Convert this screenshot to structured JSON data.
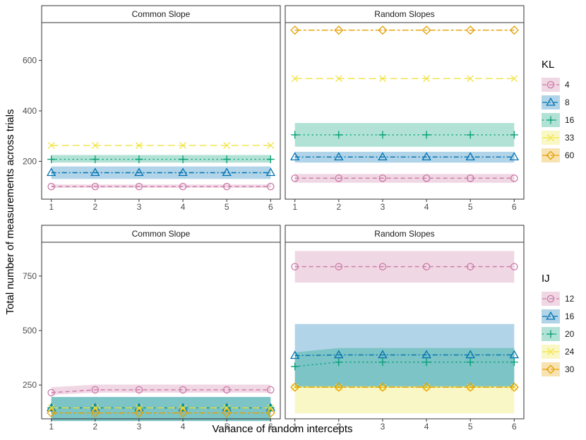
{
  "chart_data": {
    "type": "line",
    "xlabel": "Variance of random intercepts",
    "ylabel": "Total number of measurements across trials",
    "x": [
      1,
      2,
      3,
      4,
      5,
      6
    ],
    "rows": [
      {
        "legend_title": "KL",
        "ylim": [
          50,
          750
        ],
        "yticks": [
          200,
          400,
          600
        ],
        "panels": [
          {
            "title": "Common Slope",
            "series": [
              {
                "name": "4",
                "values": [
                  100,
                  100,
                  100,
                  100,
                  100,
                  100
                ],
                "band": [
                  [
                    95,
                    108
                  ],
                  [
                    95,
                    108
                  ],
                  [
                    95,
                    108
                  ],
                  [
                    95,
                    108
                  ],
                  [
                    95,
                    108
                  ],
                  [
                    95,
                    108
                  ]
                ]
              },
              {
                "name": "8",
                "values": [
                  155,
                  155,
                  155,
                  155,
                  155,
                  155
                ],
                "band": [
                  [
                    130,
                    180
                  ],
                  [
                    130,
                    180
                  ],
                  [
                    130,
                    180
                  ],
                  [
                    130,
                    180
                  ],
                  [
                    130,
                    180
                  ],
                  [
                    130,
                    180
                  ]
                ]
              },
              {
                "name": "16",
                "values": [
                  208,
                  208,
                  208,
                  208,
                  208,
                  208
                ],
                "band": [
                  [
                    195,
                    225
                  ],
                  [
                    195,
                    225
                  ],
                  [
                    195,
                    225
                  ],
                  [
                    195,
                    225
                  ],
                  [
                    195,
                    225
                  ],
                  [
                    195,
                    225
                  ]
                ]
              },
              {
                "name": "33",
                "values": [
                  263,
                  263,
                  263,
                  263,
                  263,
                  263
                ]
              }
            ]
          },
          {
            "title": "Random Slopes",
            "series": [
              {
                "name": "4",
                "values": [
                  133,
                  133,
                  133,
                  133,
                  133,
                  133
                ],
                "band": [
                  [
                    115,
                    150
                  ],
                  [
                    115,
                    150
                  ],
                  [
                    115,
                    150
                  ],
                  [
                    115,
                    150
                  ],
                  [
                    115,
                    150
                  ],
                  [
                    115,
                    150
                  ]
                ]
              },
              {
                "name": "8",
                "values": [
                  217,
                  217,
                  217,
                  217,
                  217,
                  217
                ],
                "band": [
                  [
                    195,
                    238
                  ],
                  [
                    195,
                    238
                  ],
                  [
                    195,
                    238
                  ],
                  [
                    195,
                    238
                  ],
                  [
                    195,
                    238
                  ],
                  [
                    195,
                    238
                  ]
                ]
              },
              {
                "name": "16",
                "values": [
                  305,
                  305,
                  305,
                  305,
                  305,
                  305
                ],
                "band": [
                  [
                    258,
                    352
                  ],
                  [
                    258,
                    352
                  ],
                  [
                    258,
                    352
                  ],
                  [
                    258,
                    352
                  ],
                  [
                    258,
                    352
                  ],
                  [
                    258,
                    352
                  ]
                ]
              },
              {
                "name": "33",
                "values": [
                  528,
                  528,
                  528,
                  528,
                  528,
                  528
                ]
              },
              {
                "name": "60",
                "values": [
                  720,
                  720,
                  720,
                  720,
                  720,
                  720
                ]
              }
            ]
          }
        ],
        "legend": [
          "4",
          "8",
          "16",
          "33",
          "60"
        ]
      },
      {
        "legend_title": "IJ",
        "ylim": [
          95,
          905
        ],
        "yticks": [
          250,
          500,
          750
        ],
        "panels": [
          {
            "title": "Common Slope",
            "series": [
              {
                "name": "12",
                "values": [
                  215,
                  228,
                  228,
                  228,
                  228,
                  228
                ],
                "band": [
                  [
                    205,
                    240
                  ],
                  [
                    215,
                    252
                  ],
                  [
                    215,
                    252
                  ],
                  [
                    215,
                    252
                  ],
                  [
                    215,
                    252
                  ],
                  [
                    215,
                    252
                  ]
                ]
              },
              {
                "name": "16",
                "values": [
                  145,
                  145,
                  145,
                  145,
                  145,
                  145
                ],
                "band": [
                  [
                    85,
                    195
                  ],
                  [
                    85,
                    195
                  ],
                  [
                    85,
                    195
                  ],
                  [
                    85,
                    195
                  ],
                  [
                    85,
                    195
                  ],
                  [
                    85,
                    195
                  ]
                ]
              },
              {
                "name": "20",
                "values": [
                  145,
                  145,
                  145,
                  145,
                  145,
                  145
                ],
                "band": [
                  [
                    85,
                    195
                  ],
                  [
                    85,
                    195
                  ],
                  [
                    85,
                    195
                  ],
                  [
                    85,
                    195
                  ],
                  [
                    85,
                    195
                  ],
                  [
                    85,
                    195
                  ]
                ]
              },
              {
                "name": "24",
                "values": [
                  145,
                  145,
                  145,
                  145,
                  145,
                  145
                ]
              },
              {
                "name": "30",
                "values": [
                  122,
                  122,
                  122,
                  122,
                  122,
                  122
                ]
              }
            ]
          },
          {
            "title": "Random Slopes",
            "series": [
              {
                "name": "12",
                "values": [
                  793,
                  793,
                  793,
                  793,
                  793,
                  793
                ],
                "band": [
                  [
                    720,
                    865
                  ],
                  [
                    720,
                    865
                  ],
                  [
                    720,
                    865
                  ],
                  [
                    720,
                    865
                  ],
                  [
                    720,
                    865
                  ],
                  [
                    720,
                    865
                  ]
                ]
              },
              {
                "name": "16",
                "values": [
                  385,
                  388,
                  388,
                  388,
                  388,
                  388
                ],
                "band": [
                  [
                    245,
                    530
                  ],
                  [
                    245,
                    530
                  ],
                  [
                    245,
                    530
                  ],
                  [
                    245,
                    530
                  ],
                  [
                    245,
                    530
                  ],
                  [
                    245,
                    530
                  ]
                ]
              },
              {
                "name": "20",
                "values": [
                  335,
                  355,
                  355,
                  355,
                  355,
                  355
                ],
                "band": [
                  [
                    240,
                    400
                  ],
                  [
                    240,
                    420
                  ],
                  [
                    240,
                    420
                  ],
                  [
                    240,
                    420
                  ],
                  [
                    240,
                    420
                  ],
                  [
                    240,
                    420
                  ]
                ]
              },
              {
                "name": "24",
                "values": [
                  240,
                  240,
                  240,
                  240,
                  240,
                  240
                ],
                "band": [
                  [
                    120,
                    245
                  ],
                  [
                    120,
                    245
                  ],
                  [
                    120,
                    245
                  ],
                  [
                    120,
                    245
                  ],
                  [
                    120,
                    245
                  ],
                  [
                    120,
                    245
                  ]
                ]
              },
              {
                "name": "30",
                "values": [
                  240,
                  240,
                  240,
                  240,
                  240,
                  240
                ]
              }
            ]
          }
        ],
        "legend": [
          "12",
          "16",
          "20",
          "24",
          "30"
        ]
      }
    ],
    "palette": [
      "#CC79A7",
      "#0072B2",
      "#009E73",
      "#F0E442",
      "#E69F00"
    ],
    "markers": [
      "circle",
      "triangle",
      "plus",
      "x",
      "diamond"
    ],
    "linestyles": [
      "dashed",
      "dashdot",
      "dotted",
      "longdash",
      "twodash"
    ]
  }
}
